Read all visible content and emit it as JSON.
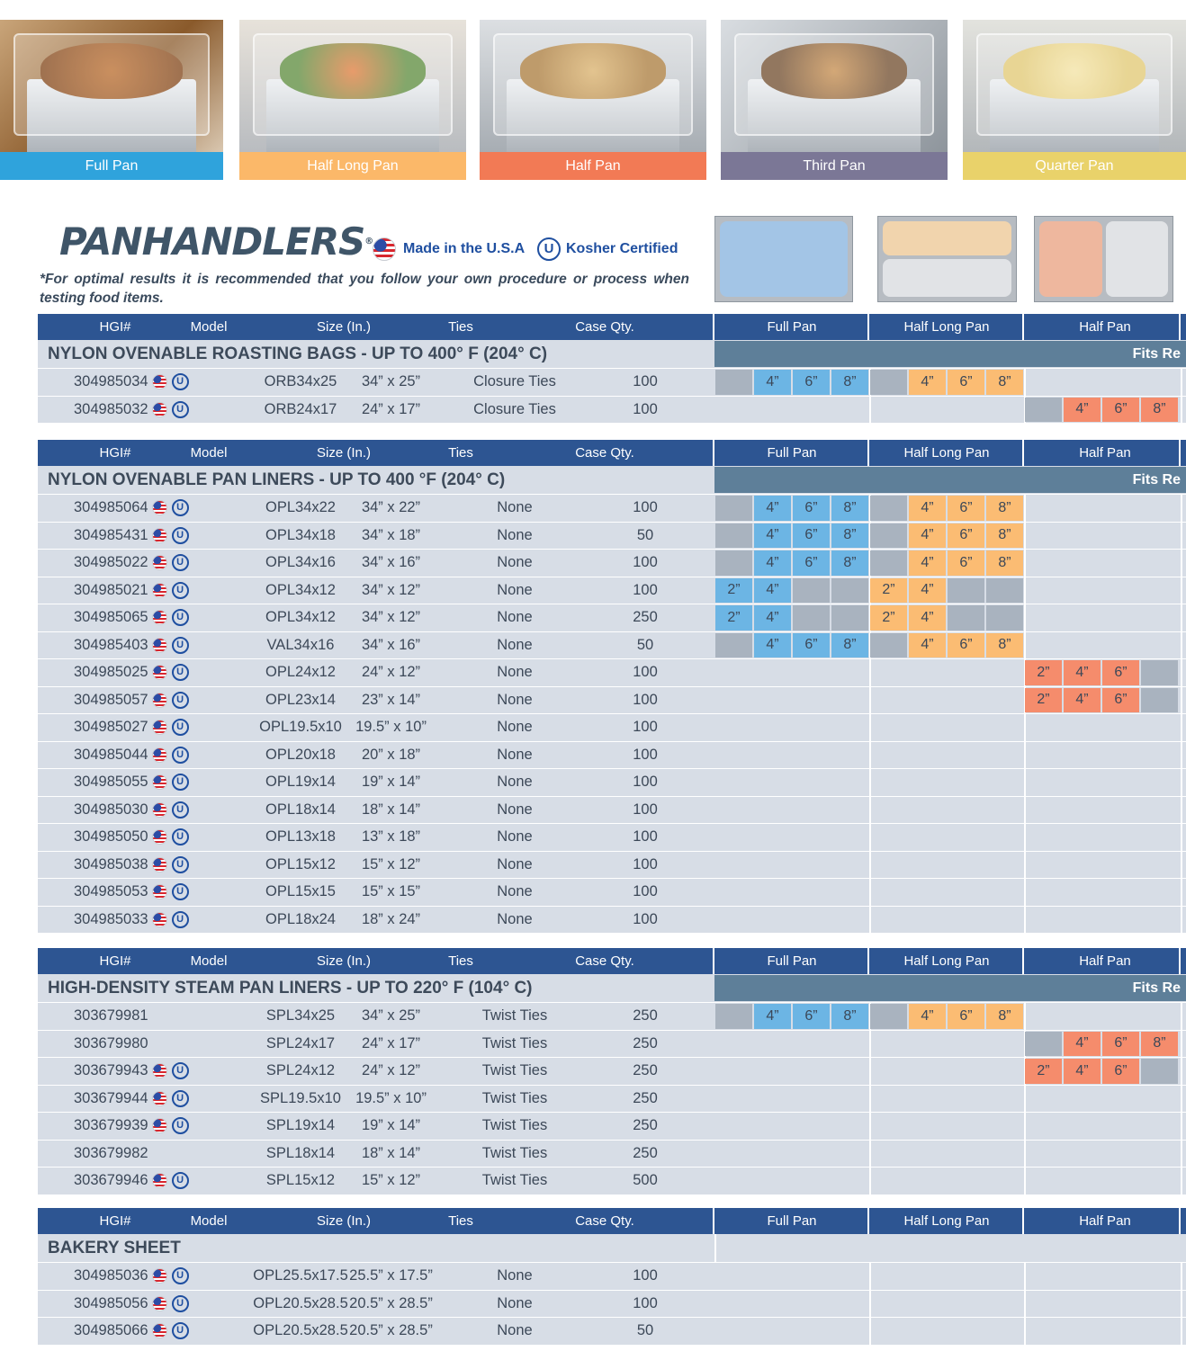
{
  "photos": [
    {
      "caption": "Full Pan",
      "color": "#2fa3dc"
    },
    {
      "caption": "Half Long Pan",
      "color": "#fbb869"
    },
    {
      "caption": "Half Pan",
      "color": "#f27a55"
    },
    {
      "caption": "Third Pan",
      "color": "#7b7796"
    },
    {
      "caption": "Quarter Pan",
      "color": "#e9d26a"
    }
  ],
  "brand": {
    "logo": "PANHANDLERS",
    "registered": "®",
    "made_in_usa": "Made in the U.S.A",
    "kosher": "Kosher Certified",
    "kosher_symbol": "U",
    "disclaimer": "*For optimal results it is recommended that you follow your own procedure or process when testing food items."
  },
  "columns": {
    "hgi": "HGI#",
    "model": "Model",
    "size": "Size (In.)",
    "ties": "Ties",
    "case_qty": "Case Qty.",
    "full_pan": "Full Pan",
    "half_long_pan": "Half Long Pan",
    "half_pan": "Half Pan"
  },
  "colors": {
    "header": "#2d5592",
    "row": "#d7dde6",
    "fits_bar": "#5e7f99",
    "full": "#6cb5e4",
    "half_long": "#fbbc73",
    "half": "#f58c6c",
    "gray": "#a9b3bf"
  },
  "sections": [
    {
      "title": "NYLON OVENABLE ROASTING BAGS - UP TO 400° F (204° C)",
      "fits_label": "Fits Re",
      "rows": [
        {
          "hgi": "304985034",
          "usa": true,
          "kosher": true,
          "model": "ORB34x25",
          "size": "34” x 25”",
          "ties": "Closure Ties",
          "qty": "100",
          "fit": [
            [
              "gray",
              ""
            ],
            [
              "blue",
              "4”"
            ],
            [
              "blue",
              "6”"
            ],
            [
              "blue",
              "8”"
            ],
            [
              "gray",
              ""
            ],
            [
              "orange",
              "4”"
            ],
            [
              "orange",
              "6”"
            ],
            [
              "orange",
              "8”"
            ],
            null,
            null,
            null,
            null
          ]
        },
        {
          "hgi": "304985032",
          "usa": true,
          "kosher": true,
          "model": "ORB24x17",
          "size": "24” x 17”",
          "ties": "Closure Ties",
          "qty": "100",
          "fit": [
            null,
            null,
            null,
            null,
            null,
            null,
            null,
            null,
            [
              "gray",
              ""
            ],
            [
              "coral",
              "4”"
            ],
            [
              "coral",
              "6”"
            ],
            [
              "coral",
              "8”"
            ]
          ]
        }
      ]
    },
    {
      "title": "NYLON OVENABLE PAN LINERS - UP TO 400 °F (204° C)",
      "fits_label": "Fits Re",
      "rows": [
        {
          "hgi": "304985064",
          "usa": true,
          "kosher": true,
          "model": "OPL34x22",
          "size": "34” x 22”",
          "ties": "None",
          "qty": "100",
          "fit": [
            [
              "gray",
              ""
            ],
            [
              "blue",
              "4”"
            ],
            [
              "blue",
              "6”"
            ],
            [
              "blue",
              "8”"
            ],
            [
              "gray",
              ""
            ],
            [
              "orange",
              "4”"
            ],
            [
              "orange",
              "6”"
            ],
            [
              "orange",
              "8”"
            ],
            null,
            null,
            null,
            null
          ]
        },
        {
          "hgi": "304985431",
          "usa": true,
          "kosher": true,
          "model": "OPL34x18",
          "size": "34” x 18”",
          "ties": "None",
          "qty": "50",
          "fit": [
            [
              "gray",
              ""
            ],
            [
              "blue",
              "4”"
            ],
            [
              "blue",
              "6”"
            ],
            [
              "blue",
              "8”"
            ],
            [
              "gray",
              ""
            ],
            [
              "orange",
              "4”"
            ],
            [
              "orange",
              "6”"
            ],
            [
              "orange",
              "8”"
            ],
            null,
            null,
            null,
            null
          ]
        },
        {
          "hgi": "304985022",
          "usa": true,
          "kosher": true,
          "model": "OPL34x16",
          "size": "34” x 16”",
          "ties": "None",
          "qty": "100",
          "fit": [
            [
              "gray",
              ""
            ],
            [
              "blue",
              "4”"
            ],
            [
              "blue",
              "6”"
            ],
            [
              "blue",
              "8”"
            ],
            [
              "gray",
              ""
            ],
            [
              "orange",
              "4”"
            ],
            [
              "orange",
              "6”"
            ],
            [
              "orange",
              "8”"
            ],
            null,
            null,
            null,
            null
          ]
        },
        {
          "hgi": "304985021",
          "usa": true,
          "kosher": true,
          "model": "OPL34x12",
          "size": "34” x 12”",
          "ties": "None",
          "qty": "100",
          "fit": [
            [
              "blue",
              "2”"
            ],
            [
              "blue",
              "4”"
            ],
            [
              "gray",
              ""
            ],
            [
              "gray",
              ""
            ],
            [
              "orange",
              "2”"
            ],
            [
              "orange",
              "4”"
            ],
            [
              "gray",
              ""
            ],
            [
              "gray",
              ""
            ],
            null,
            null,
            null,
            null
          ]
        },
        {
          "hgi": "304985065",
          "usa": true,
          "kosher": true,
          "model": "OPL34x12",
          "size": "34” x 12”",
          "ties": "None",
          "qty": "250",
          "fit": [
            [
              "blue",
              "2”"
            ],
            [
              "blue",
              "4”"
            ],
            [
              "gray",
              ""
            ],
            [
              "gray",
              ""
            ],
            [
              "orange",
              "2”"
            ],
            [
              "orange",
              "4”"
            ],
            [
              "gray",
              ""
            ],
            [
              "gray",
              ""
            ],
            null,
            null,
            null,
            null
          ]
        },
        {
          "hgi": "304985403",
          "usa": true,
          "kosher": true,
          "model": "VAL34x16",
          "size": "34” x 16”",
          "ties": "None",
          "qty": "50",
          "fit": [
            [
              "gray",
              ""
            ],
            [
              "blue",
              "4”"
            ],
            [
              "blue",
              "6”"
            ],
            [
              "blue",
              "8”"
            ],
            [
              "gray",
              ""
            ],
            [
              "orange",
              "4”"
            ],
            [
              "orange",
              "6”"
            ],
            [
              "orange",
              "8”"
            ],
            null,
            null,
            null,
            null
          ]
        },
        {
          "hgi": "304985025",
          "usa": true,
          "kosher": true,
          "model": "OPL24x12",
          "size": "24” x 12”",
          "ties": "None",
          "qty": "100",
          "fit": [
            null,
            null,
            null,
            null,
            null,
            null,
            null,
            null,
            [
              "coral",
              "2”"
            ],
            [
              "coral",
              "4”"
            ],
            [
              "coral",
              "6”"
            ],
            [
              "gray",
              ""
            ]
          ]
        },
        {
          "hgi": "304985057",
          "usa": true,
          "kosher": true,
          "model": "OPL23x14",
          "size": "23” x 14”",
          "ties": "None",
          "qty": "100",
          "fit": [
            null,
            null,
            null,
            null,
            null,
            null,
            null,
            null,
            [
              "coral",
              "2”"
            ],
            [
              "coral",
              "4”"
            ],
            [
              "coral",
              "6”"
            ],
            [
              "gray",
              ""
            ]
          ]
        },
        {
          "hgi": "304985027",
          "usa": true,
          "kosher": true,
          "model": "OPL19.5x10",
          "size": "19.5” x 10”",
          "ties": "None",
          "qty": "100",
          "fit": []
        },
        {
          "hgi": "304985044",
          "usa": true,
          "kosher": true,
          "model": "OPL20x18",
          "size": "20” x 18”",
          "ties": "None",
          "qty": "100",
          "fit": []
        },
        {
          "hgi": "304985055",
          "usa": true,
          "kosher": true,
          "model": "OPL19x14",
          "size": "19” x 14”",
          "ties": "None",
          "qty": "100",
          "fit": []
        },
        {
          "hgi": "304985030",
          "usa": true,
          "kosher": true,
          "model": "OPL18x14",
          "size": "18” x 14”",
          "ties": "None",
          "qty": "100",
          "fit": []
        },
        {
          "hgi": "304985050",
          "usa": true,
          "kosher": true,
          "model": "OPL13x18",
          "size": "13” x 18”",
          "ties": "None",
          "qty": "100",
          "fit": []
        },
        {
          "hgi": "304985038",
          "usa": true,
          "kosher": true,
          "model": "OPL15x12",
          "size": "15” x 12”",
          "ties": "None",
          "qty": "100",
          "fit": []
        },
        {
          "hgi": "304985053",
          "usa": true,
          "kosher": true,
          "model": "OPL15x15",
          "size": "15” x 15”",
          "ties": "None",
          "qty": "100",
          "fit": []
        },
        {
          "hgi": "304985033",
          "usa": true,
          "kosher": true,
          "model": "OPL18x24",
          "size": "18” x 24”",
          "ties": "None",
          "qty": "100",
          "fit": []
        }
      ]
    },
    {
      "title": "HIGH-DENSITY STEAM PAN LINERS - UP TO 220° F (104° C)",
      "fits_label": "Fits Re",
      "rows": [
        {
          "hgi": "303679981",
          "usa": false,
          "kosher": false,
          "model": "SPL34x25",
          "size": "34” x 25”",
          "ties": "Twist Ties",
          "qty": "250",
          "fit": [
            [
              "gray",
              ""
            ],
            [
              "blue",
              "4”"
            ],
            [
              "blue",
              "6”"
            ],
            [
              "blue",
              "8”"
            ],
            [
              "gray",
              ""
            ],
            [
              "orange",
              "4”"
            ],
            [
              "orange",
              "6”"
            ],
            [
              "orange",
              "8”"
            ],
            null,
            null,
            null,
            null
          ]
        },
        {
          "hgi": "303679980",
          "usa": false,
          "kosher": false,
          "model": "SPL24x17",
          "size": "24” x 17”",
          "ties": "Twist Ties",
          "qty": "250",
          "fit": [
            null,
            null,
            null,
            null,
            null,
            null,
            null,
            null,
            [
              "gray",
              ""
            ],
            [
              "coral",
              "4”"
            ],
            [
              "coral",
              "6”"
            ],
            [
              "coral",
              "8”"
            ]
          ]
        },
        {
          "hgi": "303679943",
          "usa": true,
          "kosher": true,
          "model": "SPL24x12",
          "size": "24” x 12”",
          "ties": "Twist Ties",
          "qty": "250",
          "fit": [
            null,
            null,
            null,
            null,
            null,
            null,
            null,
            null,
            [
              "coral",
              "2”"
            ],
            [
              "coral",
              "4”"
            ],
            [
              "coral",
              "6”"
            ],
            [
              "gray",
              ""
            ]
          ]
        },
        {
          "hgi": "303679944",
          "usa": true,
          "kosher": true,
          "model": "SPL19.5x10",
          "size": "19.5” x 10”",
          "ties": "Twist Ties",
          "qty": "250",
          "fit": []
        },
        {
          "hgi": "303679939",
          "usa": true,
          "kosher": true,
          "model": "SPL19x14",
          "size": "19” x 14”",
          "ties": "Twist Ties",
          "qty": "250",
          "fit": []
        },
        {
          "hgi": "303679982",
          "usa": false,
          "kosher": false,
          "model": "SPL18x14",
          "size": "18” x 14”",
          "ties": "Twist Ties",
          "qty": "250",
          "fit": []
        },
        {
          "hgi": "303679946",
          "usa": true,
          "kosher": true,
          "model": "SPL15x12",
          "size": "15” x 12”",
          "ties": "Twist Ties",
          "qty": "500",
          "fit": []
        }
      ]
    },
    {
      "title": "BAKERY SHEET",
      "fits_label": "",
      "rows": [
        {
          "hgi": "304985036",
          "usa": true,
          "kosher": true,
          "model": "OPL25.5x17.5",
          "size": "25.5” x 17.5”",
          "ties": "None",
          "qty": "100",
          "fit": []
        },
        {
          "hgi": "304985056",
          "usa": true,
          "kosher": true,
          "model": "OPL20.5x28.5",
          "size": "20.5” x 28.5”",
          "ties": "None",
          "qty": "100",
          "fit": []
        },
        {
          "hgi": "304985066",
          "usa": true,
          "kosher": true,
          "model": "OPL20.5x28.5",
          "size": "20.5” x 28.5”",
          "ties": "None",
          "qty": "50",
          "fit": []
        }
      ]
    }
  ]
}
